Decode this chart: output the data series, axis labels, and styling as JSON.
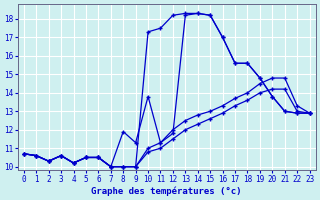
{
  "title": "Graphe des températures (°c)",
  "background_color": "#cff0f0",
  "grid_color": "#ffffff",
  "line_color": "#0000cc",
  "xlim": [
    -0.5,
    23.5
  ],
  "ylim": [
    9.8,
    18.8
  ],
  "xticks": [
    0,
    1,
    2,
    3,
    4,
    5,
    6,
    7,
    8,
    9,
    10,
    11,
    12,
    13,
    14,
    15,
    16,
    17,
    18,
    19,
    20,
    21,
    22,
    23
  ],
  "yticks": [
    10,
    11,
    12,
    13,
    14,
    15,
    16,
    17,
    18
  ],
  "line1_x": [
    0,
    1,
    2,
    3,
    4,
    5,
    6,
    7,
    8,
    9,
    10,
    11,
    12,
    13,
    14,
    15,
    16,
    17,
    18,
    19,
    20,
    21,
    22,
    23
  ],
  "line1_y": [
    10.7,
    10.6,
    10.3,
    10.6,
    10.2,
    10.5,
    10.5,
    10.0,
    10.0,
    10.0,
    17.3,
    17.5,
    18.2,
    18.3,
    18.3,
    18.2,
    17.0,
    15.6,
    15.6,
    14.8,
    13.8,
    13.0,
    12.9,
    12.9
  ],
  "line2_x": [
    0,
    1,
    2,
    3,
    4,
    5,
    6,
    7,
    8,
    9,
    10,
    11,
    12,
    13,
    14,
    15,
    16,
    17,
    18,
    19,
    20,
    21,
    22,
    23
  ],
  "line2_y": [
    10.7,
    10.6,
    10.3,
    10.6,
    10.2,
    10.5,
    10.5,
    10.0,
    11.9,
    11.3,
    13.8,
    11.3,
    11.8,
    18.2,
    18.3,
    18.2,
    17.0,
    15.6,
    15.6,
    14.8,
    13.8,
    13.0,
    12.9,
    12.9
  ],
  "line3_x": [
    0,
    1,
    2,
    3,
    4,
    5,
    6,
    7,
    8,
    9,
    10,
    11,
    12,
    13,
    14,
    15,
    16,
    17,
    18,
    19,
    20,
    21,
    22,
    23
  ],
  "line3_y": [
    10.7,
    10.6,
    10.3,
    10.6,
    10.2,
    10.5,
    10.5,
    10.0,
    10.0,
    10.0,
    11.0,
    11.3,
    12.0,
    12.5,
    12.8,
    13.0,
    13.3,
    13.7,
    14.0,
    14.5,
    14.8,
    14.8,
    13.3,
    12.9
  ],
  "line4_x": [
    0,
    1,
    2,
    3,
    4,
    5,
    6,
    7,
    8,
    9,
    10,
    11,
    12,
    13,
    14,
    15,
    16,
    17,
    18,
    19,
    20,
    21,
    22,
    23
  ],
  "line4_y": [
    10.7,
    10.6,
    10.3,
    10.6,
    10.2,
    10.5,
    10.5,
    10.0,
    10.0,
    10.0,
    10.8,
    11.0,
    11.5,
    12.0,
    12.3,
    12.6,
    12.9,
    13.3,
    13.6,
    14.0,
    14.2,
    14.2,
    13.0,
    12.9
  ]
}
